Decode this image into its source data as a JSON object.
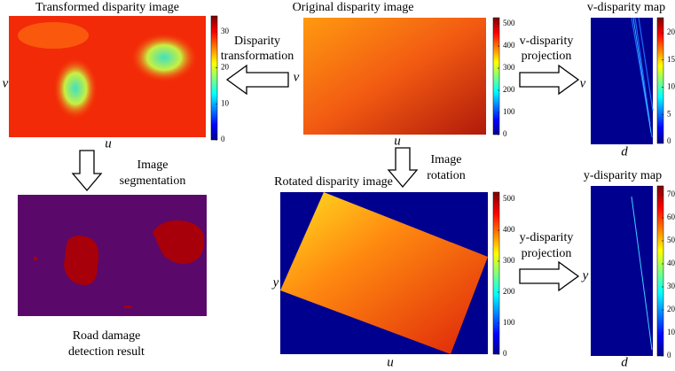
{
  "panels": [
    {
      "title": "Transformed disparity image",
      "x_label": "u",
      "y_label": "v",
      "colorbar_ticks": [
        0,
        10,
        20,
        30
      ]
    },
    {
      "title": "Original disparity image",
      "x_label": "u",
      "y_label": "v",
      "colorbar_ticks": [
        0,
        100,
        200,
        300,
        400,
        500
      ]
    },
    {
      "title": "v-disparity map",
      "x_label": "d",
      "y_label": "v",
      "colorbar_ticks": [
        0,
        5,
        10,
        15,
        20
      ]
    },
    {
      "caption": [
        "Road damage",
        "detection result"
      ]
    },
    {
      "title": "Rotated disparity image",
      "x_label": "u",
      "y_label": "y",
      "colorbar_ticks": [
        0,
        100,
        200,
        300,
        400,
        500
      ]
    },
    {
      "title": "y-disparity map",
      "x_label": "d",
      "y_label": "y",
      "colorbar_ticks": [
        0,
        10,
        20,
        30,
        40,
        50,
        60,
        70
      ]
    }
  ],
  "arrows": [
    {
      "label": [
        "Disparity",
        "transformation"
      ]
    },
    {
      "label": [
        "v-disparity",
        "projection"
      ]
    },
    {
      "label": [
        "Image",
        "segmentation"
      ]
    },
    {
      "label": [
        "Image",
        "rotation"
      ]
    },
    {
      "label": [
        "y-disparity",
        "projection"
      ]
    }
  ]
}
